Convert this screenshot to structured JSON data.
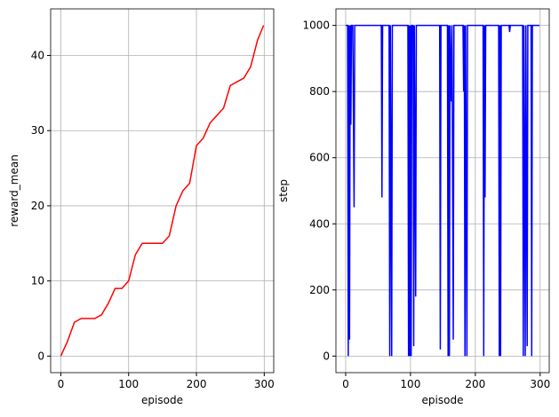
{
  "chart_data": [
    {
      "type": "line",
      "xlabel": "episode",
      "ylabel": "reward_mean",
      "xlim": [
        -15,
        314
      ],
      "ylim": [
        -2.2,
        46.2
      ],
      "xticks": [
        0,
        100,
        200,
        300
      ],
      "yticks": [
        0,
        10,
        20,
        30,
        40
      ],
      "grid": true,
      "x": [
        0,
        10,
        20,
        30,
        40,
        50,
        60,
        70,
        80,
        90,
        100,
        110,
        120,
        130,
        140,
        150,
        160,
        170,
        180,
        190,
        200,
        210,
        220,
        230,
        240,
        250,
        260,
        270,
        280,
        290,
        299
      ],
      "series": [
        {
          "name": "reward_mean",
          "color": "#ff0000",
          "values": [
            0,
            2,
            4.5,
            5,
            5,
            5,
            5.5,
            7,
            9,
            9,
            10,
            13.5,
            15,
            15,
            15,
            15,
            16,
            20,
            22,
            23,
            28,
            29,
            31,
            32,
            33,
            36,
            36.5,
            37,
            38.5,
            42,
            44
          ]
        }
      ]
    },
    {
      "type": "line",
      "xlabel": "episode",
      "ylabel": "step",
      "xlim": [
        -15,
        314
      ],
      "ylim": [
        -50,
        1050
      ],
      "xticks": [
        0,
        100,
        200,
        300
      ],
      "yticks": [
        0,
        200,
        400,
        600,
        800,
        1000
      ],
      "grid": true,
      "x": [
        0,
        3,
        4,
        5,
        6,
        7,
        8,
        9,
        11,
        13,
        14,
        55,
        56,
        57,
        67,
        68,
        69,
        71,
        72,
        96,
        97,
        98,
        99,
        100,
        101,
        102,
        104,
        105,
        106,
        108,
        109,
        145,
        146,
        147,
        157,
        158,
        159,
        160,
        161,
        163,
        164,
        166,
        167,
        181,
        182,
        183,
        184,
        185,
        187,
        188,
        212,
        213,
        214,
        215,
        216,
        236,
        237,
        238,
        239,
        240,
        252,
        253,
        254,
        273,
        274,
        275,
        277,
        278,
        280,
        281,
        286,
        287,
        288,
        299
      ],
      "series": [
        {
          "name": "step",
          "color": "#0000ff",
          "values": [
            1000,
            1000,
            0,
            1000,
            50,
            1000,
            700,
            1000,
            1000,
            450,
            1000,
            1000,
            480,
            1000,
            1000,
            0,
            1000,
            0,
            1000,
            1000,
            0,
            1000,
            0,
            1000,
            0,
            1000,
            1000,
            30,
            1000,
            180,
            1000,
            1000,
            20,
            1000,
            1000,
            0,
            1000,
            0,
            1000,
            770,
            1000,
            50,
            1000,
            1000,
            800,
            1000,
            0,
            1000,
            0,
            1000,
            1000,
            0,
            1000,
            480,
            1000,
            1000,
            0,
            1000,
            0,
            1000,
            1000,
            980,
            1000,
            1000,
            0,
            1000,
            0,
            1000,
            30,
            1000,
            1000,
            0,
            1000,
            1000
          ]
        }
      ]
    }
  ]
}
